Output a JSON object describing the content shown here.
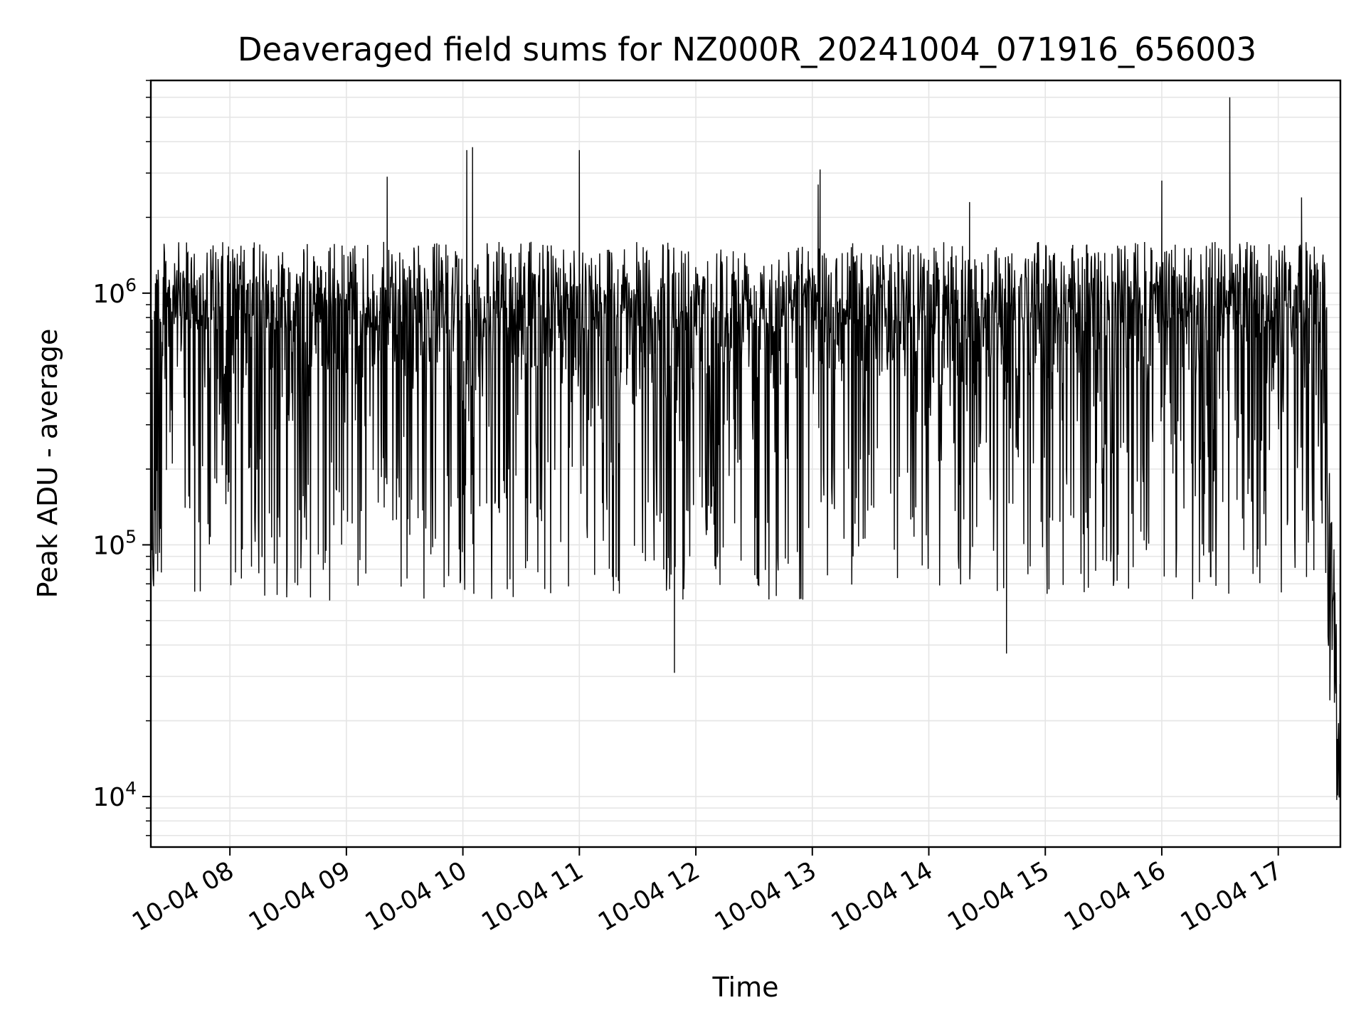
{
  "chart_data": {
    "type": "line",
    "title": "Deaveraged field sums for NZ000R_20241004_071916_656003",
    "xlabel": "Time",
    "ylabel": "Peak ADU - average",
    "yscale": "log",
    "ylim": [
      6300,
      7000000
    ],
    "xlim": [
      "2024-10-04 07:19:16",
      "2024-10-04 17:32:00"
    ],
    "x_ticks": [
      "10-04 08",
      "10-04 09",
      "10-04 10",
      "10-04 11",
      "10-04 12",
      "10-04 13",
      "10-04 14",
      "10-04 15",
      "10-04 16",
      "10-04 17"
    ],
    "y_ticks": [
      {
        "base": "10",
        "exp": "4",
        "value": 10000
      },
      {
        "base": "10",
        "exp": "5",
        "value": 100000
      },
      {
        "base": "10",
        "exp": "6",
        "value": 1000000
      }
    ],
    "grid": true,
    "line_color": "#000000",
    "grid_color": "#e5e5e5",
    "series": [
      {
        "values": [
          [
            "2024-10-04 07:19",
            60000
          ],
          [
            "2024-10-04 07:25",
            700000
          ],
          [
            "2024-10-04 07:40",
            900000
          ],
          [
            "2024-10-04 08:00",
            700000
          ],
          [
            "2024-10-04 08:30",
            800000
          ],
          [
            "2024-10-04 09:00",
            750000
          ],
          [
            "2024-10-04 09:30",
            800000
          ],
          [
            "2024-10-04 10:00",
            850000
          ],
          [
            "2024-10-04 10:30",
            800000
          ],
          [
            "2024-10-04 11:00",
            800000
          ],
          [
            "2024-10-04 11:30",
            650000
          ],
          [
            "2024-10-04 12:00",
            750000
          ],
          [
            "2024-10-04 12:30",
            800000
          ],
          [
            "2024-10-04 13:00",
            800000
          ],
          [
            "2024-10-04 13:30",
            750000
          ],
          [
            "2024-10-04 14:00",
            700000
          ],
          [
            "2024-10-04 14:30",
            650000
          ],
          [
            "2024-10-04 15:00",
            700000
          ],
          [
            "2024-10-04 15:30",
            800000
          ],
          [
            "2024-10-04 16:00",
            800000
          ],
          [
            "2024-10-04 16:30",
            750000
          ],
          [
            "2024-10-04 17:00",
            800000
          ],
          [
            "2024-10-04 17:20",
            1000000
          ],
          [
            "2024-10-04 17:25",
            100000
          ],
          [
            "2024-10-04 17:32",
            15000
          ]
        ],
        "spikes": [
          [
            "2024-10-04 09:21",
            2900000
          ],
          [
            "2024-10-04 10:02",
            3700000
          ],
          [
            "2024-10-04 10:05",
            3800000
          ],
          [
            "2024-10-04 11:00",
            3700000
          ],
          [
            "2024-10-04 11:49",
            31000
          ],
          [
            "2024-10-04 13:04",
            3100000
          ],
          [
            "2024-10-04 13:03",
            2700000
          ],
          [
            "2024-10-04 14:21",
            2300000
          ],
          [
            "2024-10-04 14:40",
            37000
          ],
          [
            "2024-10-04 16:00",
            2800000
          ],
          [
            "2024-10-04 16:35",
            6000000
          ],
          [
            "2024-10-04 17:12",
            2400000
          ],
          [
            "2024-10-04 17:32",
            8000
          ]
        ],
        "typical_high": 1600000,
        "typical_low": 60000
      }
    ]
  }
}
